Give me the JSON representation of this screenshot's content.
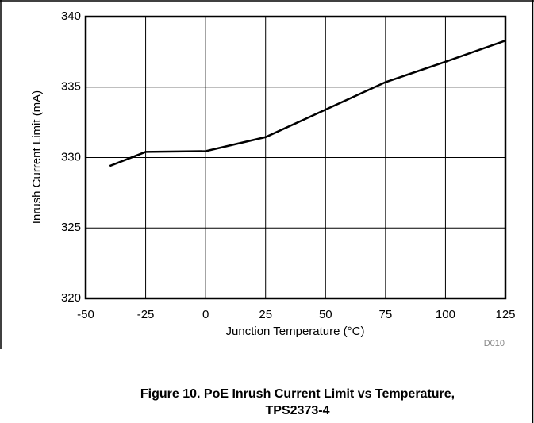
{
  "chart_data": {
    "type": "line",
    "title": [
      "Figure 10. PoE Inrush Current Limit vs Temperature,",
      "TPS2373-4"
    ],
    "x_label": "Junction Temperature (°C)",
    "y_label": "Inrush Current Limit (mA)",
    "annotation": "D010",
    "x": [
      -40,
      -25,
      0,
      25,
      50,
      75,
      100,
      125
    ],
    "series": [
      {
        "name": "TPS2373-4",
        "color": "#000000",
        "values": [
          329.4,
          330.4,
          330.45,
          331.45,
          333.4,
          335.35,
          336.8,
          338.3
        ]
      }
    ],
    "xlim": [
      -50,
      125
    ],
    "xticks": [
      -50,
      -25,
      0,
      25,
      50,
      75,
      100,
      125
    ],
    "ylim": [
      320,
      340
    ],
    "yticks": [
      320,
      325,
      330,
      335,
      340
    ],
    "grid": true
  }
}
